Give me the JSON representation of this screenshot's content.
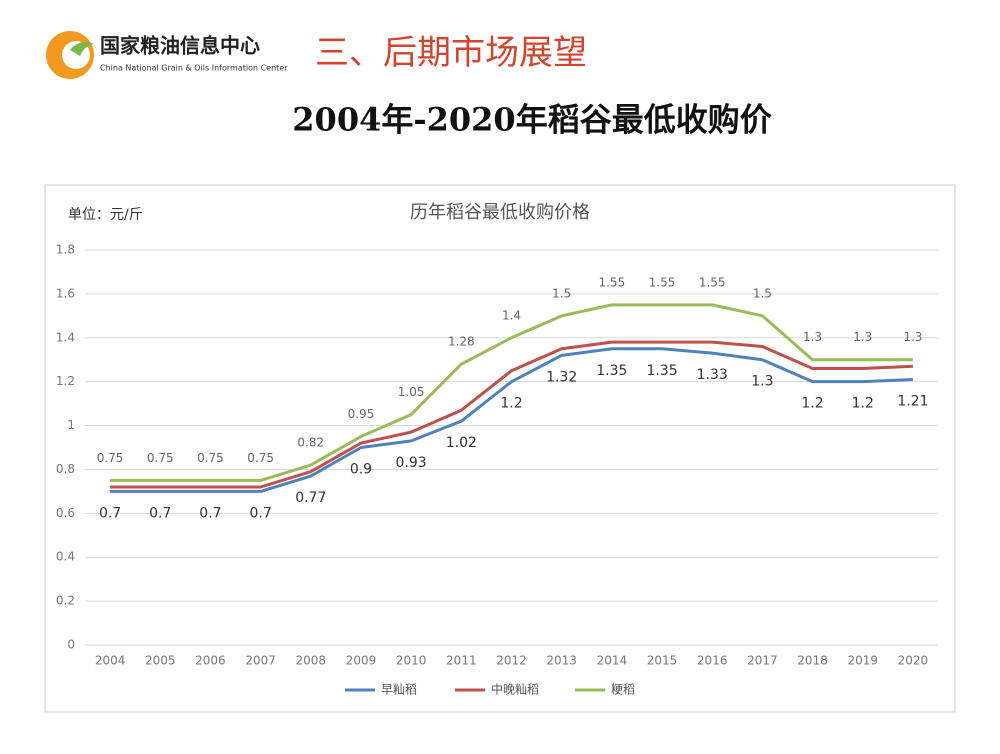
{
  "header": {
    "logo_cn": "国家粮油信息中心",
    "logo_en": "China National Grain & Oils Information Center",
    "section": "三、后期市场展望",
    "slide_title": "2004年-2020年稻谷最低收购价"
  },
  "chart_data": {
    "type": "line",
    "title": "历年稻谷最低收购价格",
    "unit_label": "单位：元/斤",
    "categories": [
      "2004",
      "2005",
      "2006",
      "2007",
      "2008",
      "2009",
      "2010",
      "2011",
      "2012",
      "2013",
      "2014",
      "2015",
      "2016",
      "2017",
      "2018",
      "2019",
      "2020"
    ],
    "series": [
      {
        "name": "早籼稻",
        "color": "#4f81bd",
        "label_position": "below",
        "values": [
          0.7,
          0.7,
          0.7,
          0.7,
          0.77,
          0.9,
          0.93,
          1.02,
          1.2,
          1.32,
          1.35,
          1.35,
          1.33,
          1.3,
          1.2,
          1.2,
          1.21
        ]
      },
      {
        "name": "中晚籼稻",
        "color": "#c0504d",
        "values": [
          0.72,
          0.72,
          0.72,
          0.72,
          0.79,
          0.92,
          0.97,
          1.07,
          1.25,
          1.35,
          1.38,
          1.38,
          1.38,
          1.36,
          1.26,
          1.26,
          1.27
        ]
      },
      {
        "name": "粳稻",
        "color": "#9bbb59",
        "label_position": "above",
        "values": [
          0.75,
          0.75,
          0.75,
          0.75,
          0.82,
          0.95,
          1.05,
          1.28,
          1.4,
          1.5,
          1.55,
          1.55,
          1.55,
          1.5,
          1.3,
          1.3,
          1.3
        ]
      }
    ],
    "ylim": [
      0,
      1.8
    ],
    "yticks": [
      0,
      0.2,
      0.4,
      0.6,
      0.8,
      1,
      1.2,
      1.4,
      1.6,
      1.8
    ],
    "grid": true,
    "legend": "bottom"
  }
}
